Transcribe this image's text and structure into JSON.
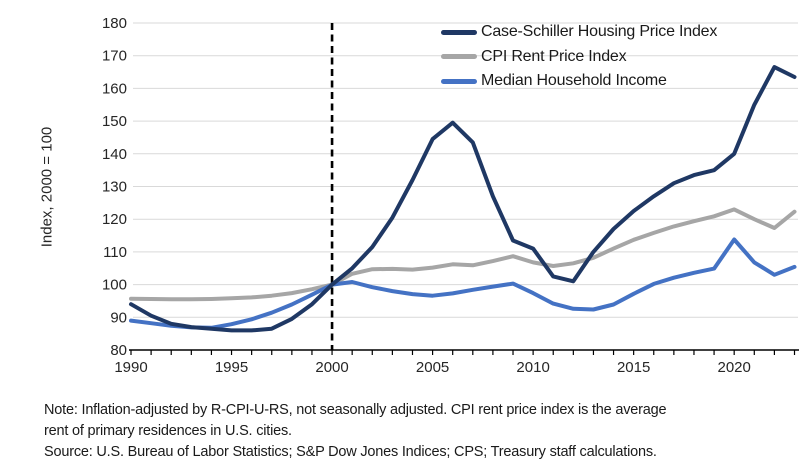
{
  "chart_data": {
    "type": "line",
    "title": "",
    "ylabel": "Index, 2000 = 100",
    "xlabel": "",
    "ylim": [
      80,
      180
    ],
    "y_tick_step": 10,
    "x_range": [
      1990,
      2023
    ],
    "x_tick_labels": [
      "1990",
      "1995",
      "2000",
      "2005",
      "2010",
      "2015",
      "2020"
    ],
    "reference_line_year": 2000,
    "grid": true,
    "legend_position": "top-right-inside",
    "years": [
      1990,
      1991,
      1992,
      1993,
      1994,
      1995,
      1996,
      1997,
      1998,
      1999,
      2000,
      2001,
      2002,
      2003,
      2004,
      2005,
      2006,
      2007,
      2008,
      2009,
      2010,
      2011,
      2012,
      2013,
      2014,
      2015,
      2016,
      2017,
      2018,
      2019,
      2020,
      2021,
      2022,
      2023
    ],
    "series": [
      {
        "name": "Case-Schiller Housing Price Index",
        "color": "#1F3864",
        "values": [
          94,
          90.5,
          88,
          87,
          86.5,
          86,
          86,
          86.5,
          89.5,
          94,
          100,
          105,
          111.5,
          120.5,
          132,
          144.5,
          149.5,
          143.5,
          127,
          113.5,
          111,
          102.5,
          101,
          110,
          117,
          122.5,
          127,
          131,
          133.5,
          135,
          140,
          155,
          166.5,
          163.5
        ]
      },
      {
        "name": "CPI Rent Price Index",
        "color": "#A6A6A6",
        "values": [
          95.7,
          95.6,
          95.5,
          95.5,
          95.6,
          95.8,
          96.1,
          96.6,
          97.4,
          98.6,
          100,
          103.3,
          104.7,
          104.8,
          104.6,
          105.2,
          106.2,
          105.9,
          107.2,
          108.7,
          106.8,
          105.7,
          106.5,
          108.2,
          111,
          113.7,
          115.8,
          117.8,
          119.4,
          120.9,
          123,
          120,
          117.3,
          122.3
        ]
      },
      {
        "name": "Median Household Income",
        "color": "#4472C4",
        "values": [
          89,
          88.2,
          87.4,
          86.9,
          86.8,
          87.9,
          89.4,
          91.4,
          93.9,
          96.9,
          100,
          100.8,
          99.2,
          98,
          97.1,
          96.6,
          97.3,
          98.4,
          99.4,
          100.3,
          97.4,
          94.2,
          92.6,
          92.4,
          93.9,
          97.2,
          100.2,
          102.1,
          103.6,
          104.9,
          113.8,
          106.8,
          103,
          105.4
        ]
      }
    ]
  },
  "footnote": {
    "note_line1": "Note: Inflation-adjusted by R-CPI-U-RS, not seasonally adjusted. CPI rent price index is the average",
    "note_line2": "rent of primary residences in U.S. cities.",
    "source": "Source: U.S. Bureau of Labor Statistics; S&P Dow Jones Indices; CPS; Treasury staff calculations."
  },
  "colors": {
    "grid": "#D9D9D9",
    "axis": "#000000",
    "reference_line": "#000000",
    "tick_text": "#262626"
  }
}
